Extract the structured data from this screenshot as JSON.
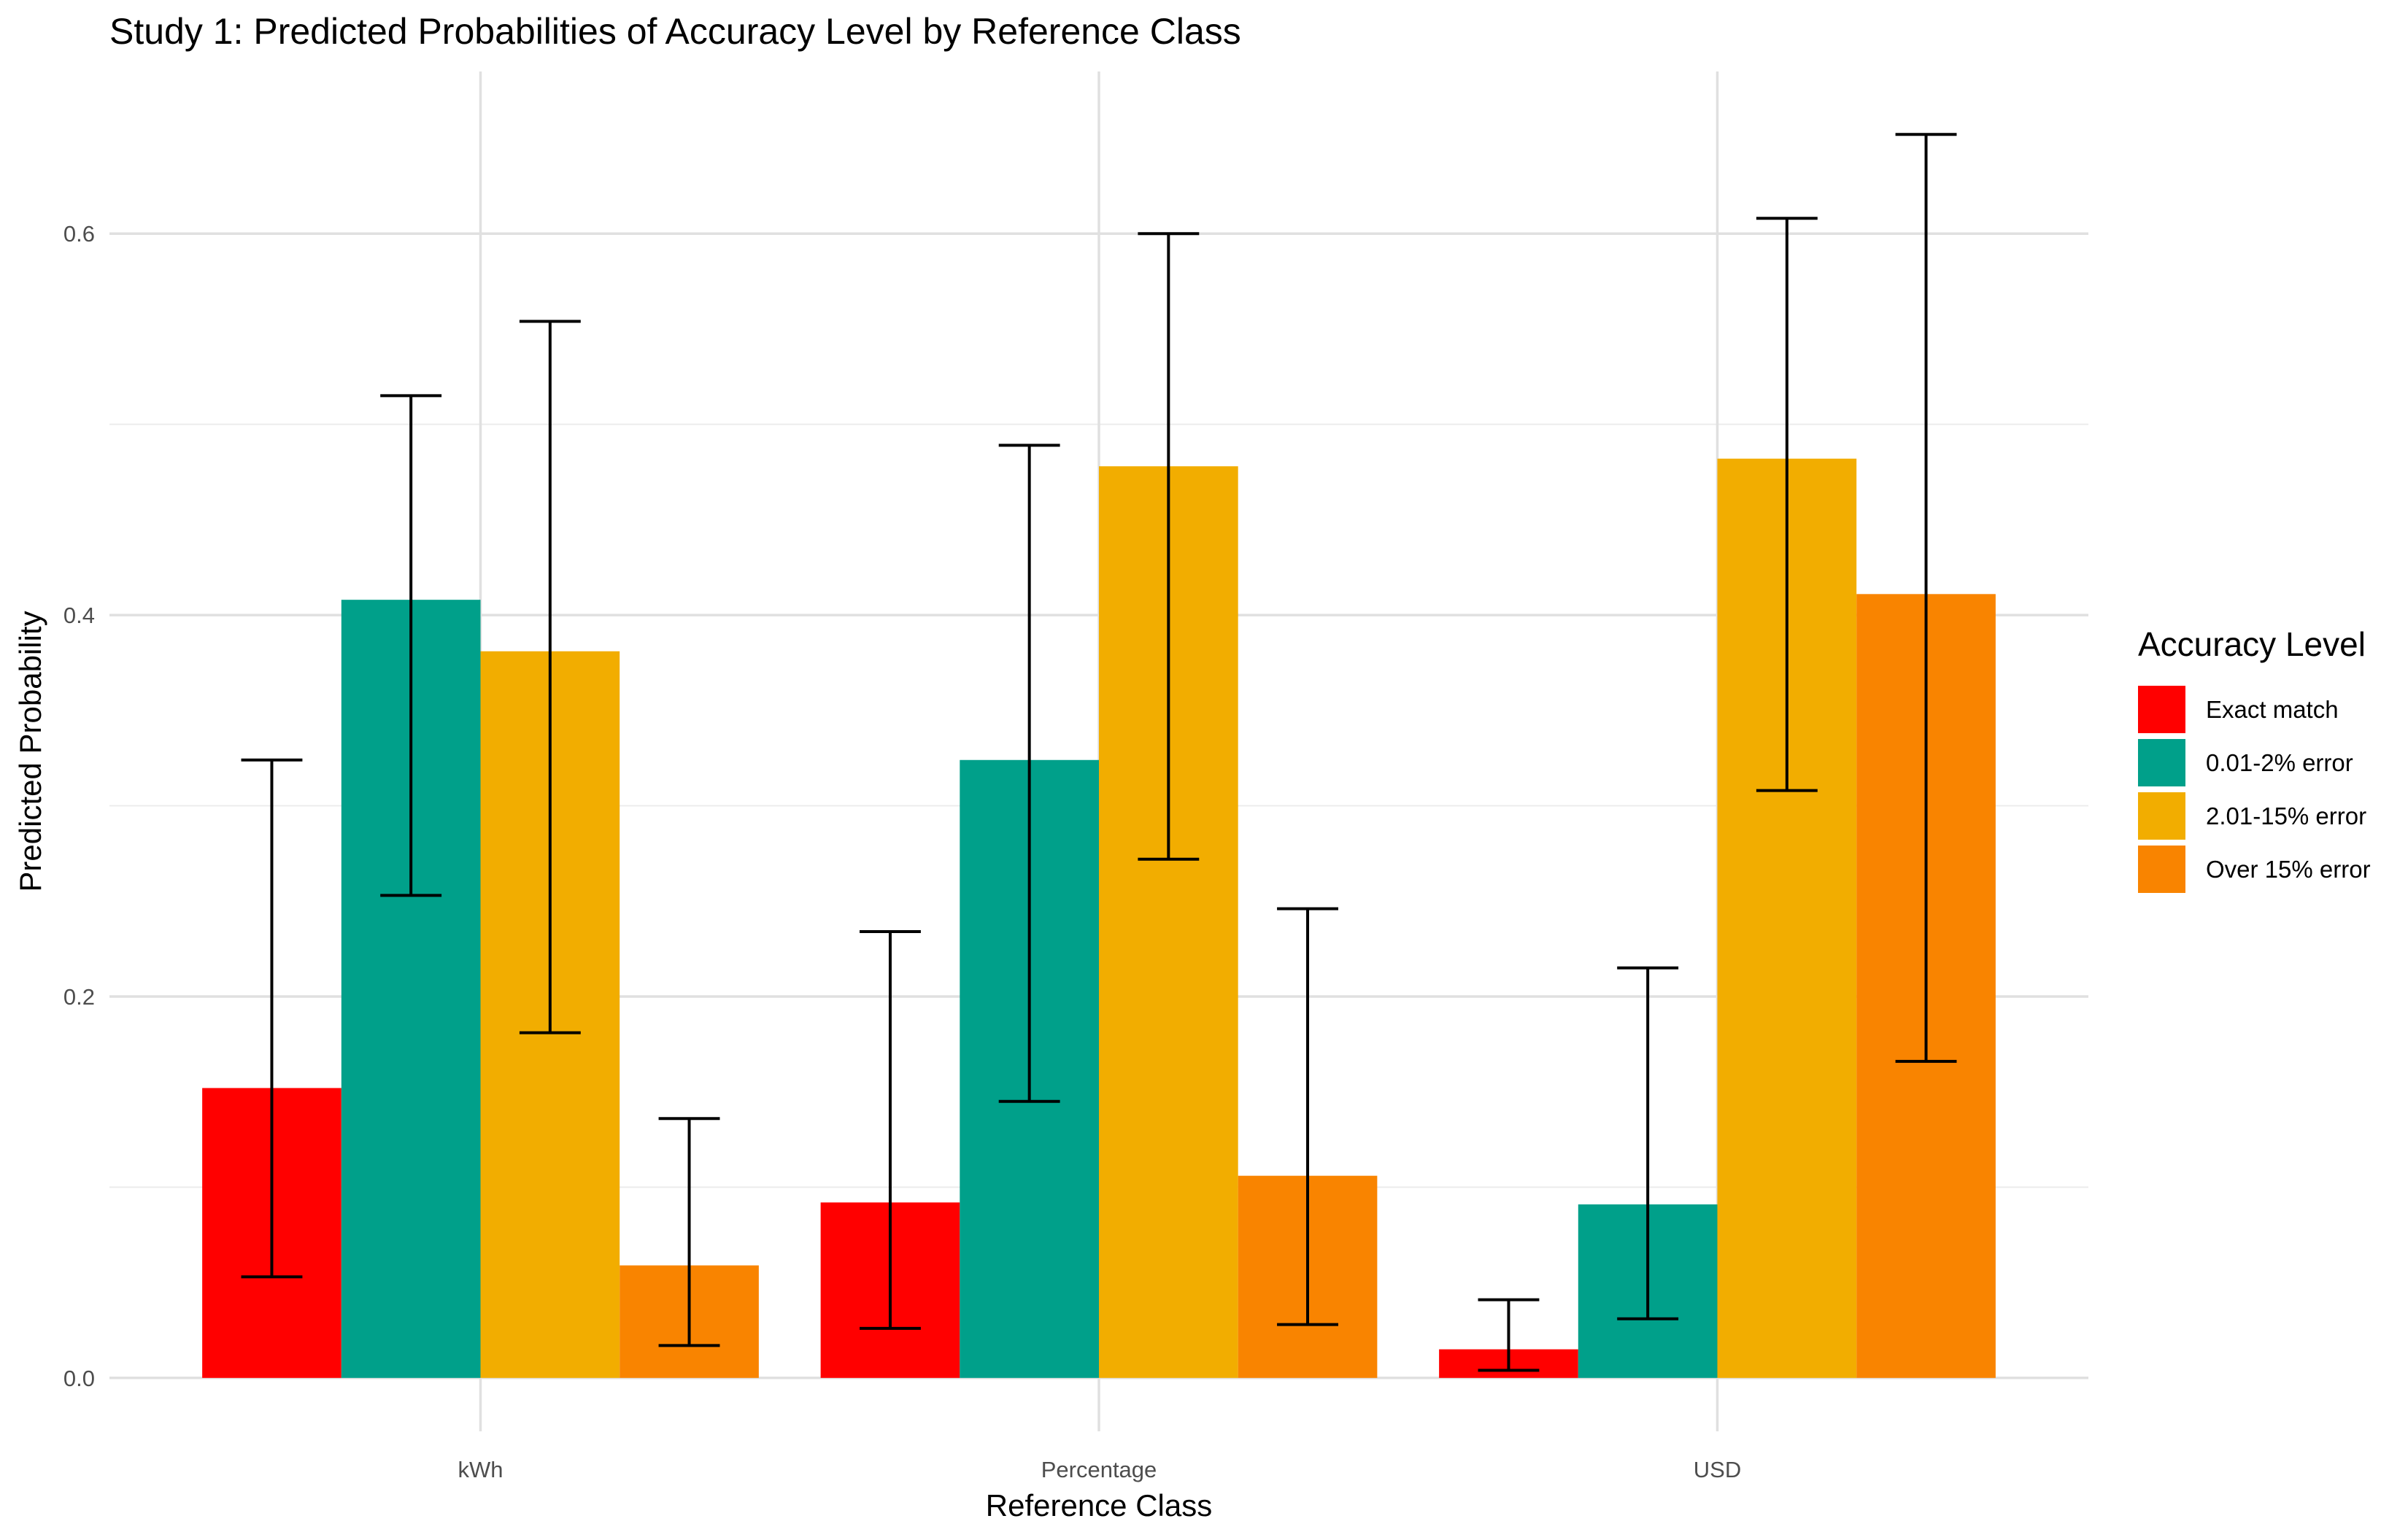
{
  "chart_data": {
    "type": "bar",
    "title": "Study 1: Predicted Probabilities of Accuracy Level by Reference Class",
    "xlabel": "Reference Class",
    "ylabel": "Predicted Probability",
    "categories": [
      "kWh",
      "Percentage",
      "USD"
    ],
    "ylim": [
      -0.028,
      0.685
    ],
    "yticks": [
      0.0,
      0.2,
      0.4,
      0.6
    ],
    "ytick_labels": [
      "0.0",
      "0.2",
      "0.4",
      "0.6"
    ],
    "grid": true,
    "legend_title": "Accuracy Level",
    "legend_position": "right",
    "series": [
      {
        "name": "Exact match",
        "color": "#FF0000",
        "values": [
          0.152,
          0.092,
          0.015
        ],
        "lower": [
          0.053,
          0.026,
          0.004
        ],
        "upper": [
          0.324,
          0.234,
          0.041
        ]
      },
      {
        "name": "0.01-2% error",
        "color": "#00A08A",
        "values": [
          0.408,
          0.324,
          0.091
        ],
        "lower": [
          0.253,
          0.145,
          0.031
        ],
        "upper": [
          0.515,
          0.489,
          0.215
        ]
      },
      {
        "name": "2.01-15% error",
        "color": "#F2AD00",
        "values": [
          0.381,
          0.478,
          0.482
        ],
        "lower": [
          0.181,
          0.272,
          0.308
        ],
        "upper": [
          0.554,
          0.6,
          0.608
        ]
      },
      {
        "name": "Over 15% error",
        "color": "#F98400",
        "values": [
          0.059,
          0.106,
          0.411
        ],
        "lower": [
          0.017,
          0.028,
          0.166
        ],
        "upper": [
          0.136,
          0.246,
          0.652
        ]
      }
    ]
  }
}
